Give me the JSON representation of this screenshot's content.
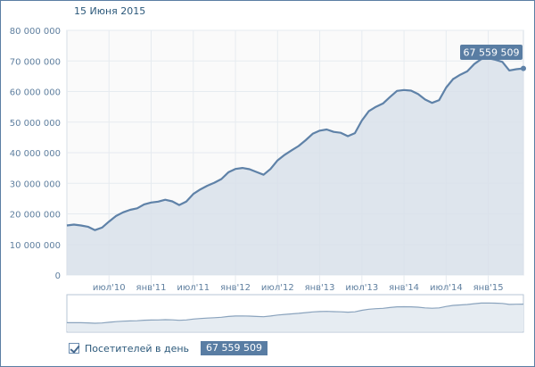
{
  "header": {
    "date": "15 Июня 2015"
  },
  "legend": {
    "label": "Посетителей в день",
    "value": "67 559 509"
  },
  "tooltip": {
    "value": "67 559 509"
  },
  "colors": {
    "line": "#5f82a8",
    "fill": "#d8e1ea",
    "badge": "#597da3",
    "grid": "#e6ebf0"
  },
  "chart_data": {
    "type": "area",
    "ylim": [
      0,
      80000000
    ],
    "yticks": [
      {
        "value": 0,
        "label": "0"
      },
      {
        "value": 10000000,
        "label": "10 000 000"
      },
      {
        "value": 20000000,
        "label": "20 000 000"
      },
      {
        "value": 30000000,
        "label": "30 000 000"
      },
      {
        "value": 40000000,
        "label": "40 000 000"
      },
      {
        "value": 50000000,
        "label": "50 000 000"
      },
      {
        "value": 60000000,
        "label": "60 000 000"
      },
      {
        "value": 70000000,
        "label": "70 000 000"
      },
      {
        "value": 80000000,
        "label": "80 000 000"
      }
    ],
    "xlim": [
      "2010-01",
      "2015-06"
    ],
    "xticks": [
      {
        "x": "2010-07",
        "label": "июл'10"
      },
      {
        "x": "2011-01",
        "label": "янв'11"
      },
      {
        "x": "2011-07",
        "label": "июл'11"
      },
      {
        "x": "2012-01",
        "label": "янв'12"
      },
      {
        "x": "2012-07",
        "label": "июл'12"
      },
      {
        "x": "2013-01",
        "label": "янв'13"
      },
      {
        "x": "2013-07",
        "label": "июл'13"
      },
      {
        "x": "2014-01",
        "label": "янв'14"
      },
      {
        "x": "2014-07",
        "label": "июл'14"
      },
      {
        "x": "2015-01",
        "label": "янв'15"
      }
    ],
    "series": [
      {
        "name": "Посетителей в день",
        "points": [
          [
            "2010-01",
            16200000
          ],
          [
            "2010-02",
            16500000
          ],
          [
            "2010-03",
            16200000
          ],
          [
            "2010-04",
            15800000
          ],
          [
            "2010-05",
            14700000
          ],
          [
            "2010-06",
            15500000
          ],
          [
            "2010-07",
            17500000
          ],
          [
            "2010-08",
            19300000
          ],
          [
            "2010-09",
            20500000
          ],
          [
            "2010-10",
            21300000
          ],
          [
            "2010-11",
            21800000
          ],
          [
            "2010-12",
            23100000
          ],
          [
            "2011-01",
            23700000
          ],
          [
            "2011-02",
            24000000
          ],
          [
            "2011-03",
            24600000
          ],
          [
            "2011-04",
            24100000
          ],
          [
            "2011-05",
            22900000
          ],
          [
            "2011-06",
            24000000
          ],
          [
            "2011-07",
            26500000
          ],
          [
            "2011-08",
            28000000
          ],
          [
            "2011-09",
            29200000
          ],
          [
            "2011-10",
            30200000
          ],
          [
            "2011-11",
            31400000
          ],
          [
            "2011-12",
            33600000
          ],
          [
            "2012-01",
            34700000
          ],
          [
            "2012-02",
            35000000
          ],
          [
            "2012-03",
            34600000
          ],
          [
            "2012-04",
            33700000
          ],
          [
            "2012-05",
            32800000
          ],
          [
            "2012-06",
            34700000
          ],
          [
            "2012-07",
            37500000
          ],
          [
            "2012-08",
            39300000
          ],
          [
            "2012-09",
            40800000
          ],
          [
            "2012-10",
            42200000
          ],
          [
            "2012-11",
            44100000
          ],
          [
            "2012-12",
            46200000
          ],
          [
            "2013-01",
            47200000
          ],
          [
            "2013-02",
            47600000
          ],
          [
            "2013-03",
            46800000
          ],
          [
            "2013-04",
            46500000
          ],
          [
            "2013-05",
            45400000
          ],
          [
            "2013-06",
            46400000
          ],
          [
            "2013-07",
            50500000
          ],
          [
            "2013-08",
            53600000
          ],
          [
            "2013-09",
            55000000
          ],
          [
            "2013-10",
            56100000
          ],
          [
            "2013-11",
            58200000
          ],
          [
            "2013-12",
            60200000
          ],
          [
            "2014-01",
            60500000
          ],
          [
            "2014-02",
            60300000
          ],
          [
            "2014-03",
            59200000
          ],
          [
            "2014-04",
            57400000
          ],
          [
            "2014-05",
            56300000
          ],
          [
            "2014-06",
            57200000
          ],
          [
            "2014-07",
            61300000
          ],
          [
            "2014-08",
            64100000
          ],
          [
            "2014-09",
            65500000
          ],
          [
            "2014-10",
            66600000
          ],
          [
            "2014-11",
            69000000
          ],
          [
            "2014-12",
            70600000
          ],
          [
            "2015-01",
            70900000
          ],
          [
            "2015-02",
            70400000
          ],
          [
            "2015-03",
            69700000
          ],
          [
            "2015-04",
            66900000
          ],
          [
            "2015-05",
            67300000
          ],
          [
            "2015-06",
            67559509
          ]
        ]
      }
    ],
    "grid": true,
    "legend_position": "bottom-left"
  }
}
